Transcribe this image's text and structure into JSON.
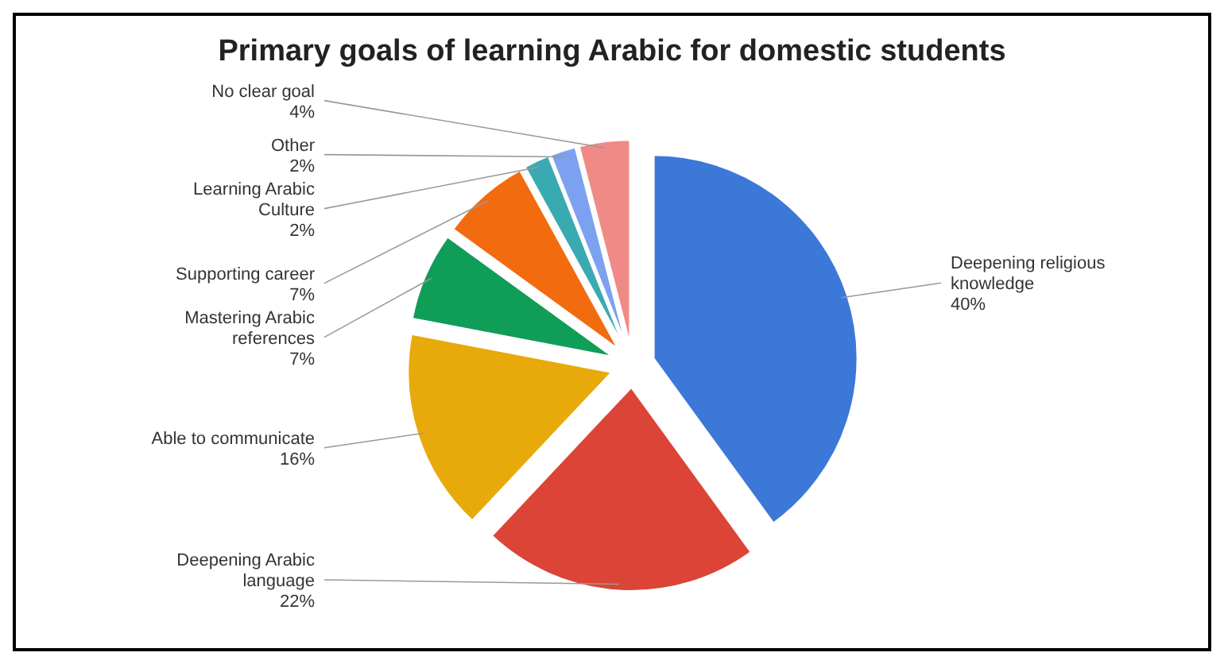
{
  "chart_data": {
    "type": "pie",
    "title": "Primary goals of learning Arabic for domestic students",
    "categories": [
      "Deepening religious knowledge",
      "Deepening Arabic language",
      "Able to communicate",
      "Mastering Arabic references",
      "Supporting career",
      "Learning Arabic Culture",
      "Other",
      "No clear goal"
    ],
    "values": [
      40,
      22,
      16,
      7,
      7,
      2,
      2,
      4
    ],
    "colors": [
      "#3c78d8",
      "#db4437",
      "#e8a90a",
      "#0f9d58",
      "#f26b0f",
      "#3aaab2",
      "#7ba1f0",
      "#f08a86"
    ],
    "value_labels": [
      "40%",
      "22%",
      "16%",
      "7%",
      "7%",
      "2%",
      "2%",
      "4%"
    ]
  }
}
